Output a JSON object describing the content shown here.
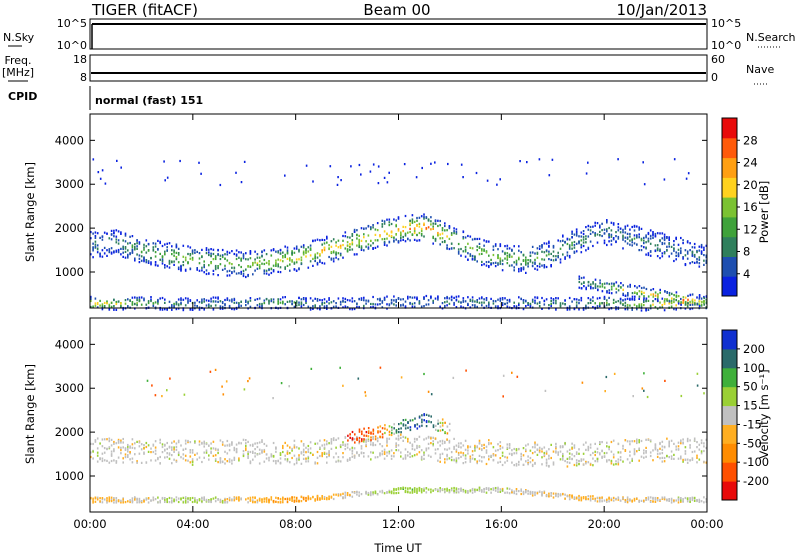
{
  "header": {
    "radar_label": "TIGER (fitACF)",
    "beam_label": "Beam 00",
    "date_label": "10/Jan/2013"
  },
  "strip_panels": {
    "nsky": {
      "label": "N.Sky",
      "ticks": [
        "10^5",
        "10^0"
      ]
    },
    "nsearch": {
      "label": "N.Search",
      "ticks": [
        "10^5",
        "10^0"
      ]
    },
    "freq": {
      "label_line1": "Freq.",
      "label_line2": "[MHz]",
      "ticks": [
        "18",
        "8"
      ],
      "value_mhz": 10
    },
    "nave": {
      "label": "Nave",
      "ticks": [
        "60",
        "0"
      ]
    },
    "cpid": {
      "label": "CPID",
      "value": "normal (fast) 151"
    }
  },
  "chart_data": [
    {
      "type": "heatmap",
      "quantity": "Power",
      "xlabel": "",
      "ylabel": "Slant Range [km]",
      "xlim": [
        "00:00",
        "24:00"
      ],
      "ylim": [
        180,
        4600
      ],
      "x_tick_labels": [],
      "y_tick_labels": [
        "1000",
        "2000",
        "3000",
        "4000"
      ],
      "y_ticks": [
        1000,
        2000,
        3000,
        4000
      ],
      "colorbar": {
        "label": "Power [dB]",
        "range": [
          0,
          32
        ],
        "tick_labels": [
          "4",
          "8",
          "12",
          "16",
          "20",
          "24",
          "28"
        ],
        "colors": [
          "#0a22e0",
          "#1e4fb0",
          "#2f7f5c",
          "#3fa23a",
          "#7bc232",
          "#ffd21f",
          "#ff9f12",
          "#ff5a0a",
          "#e80a0a"
        ]
      },
      "series": [
        {
          "description": "near-range band",
          "t": [
            0,
            1,
            2,
            3,
            5,
            7,
            9,
            11,
            13,
            15,
            17,
            19,
            20,
            21,
            22,
            23,
            24
          ],
          "range_km": [
            320,
            300,
            330,
            290,
            310,
            330,
            300,
            320,
            340,
            330,
            310,
            300,
            320,
            280,
            290,
            300,
            320
          ],
          "power_db": [
            22,
            18,
            14,
            10,
            8,
            12,
            8,
            8,
            8,
            8,
            8,
            10,
            12,
            14,
            20,
            24,
            18
          ]
        },
        {
          "description": "main F-region band",
          "t": [
            0,
            1,
            2,
            3,
            4,
            5,
            6,
            7,
            8,
            9,
            10,
            11,
            12,
            13,
            14,
            15,
            16,
            17,
            18,
            19,
            20,
            21,
            22,
            23,
            24
          ],
          "range_km": [
            1650,
            1700,
            1500,
            1400,
            1300,
            1250,
            1200,
            1250,
            1350,
            1500,
            1650,
            1850,
            2000,
            2050,
            1800,
            1500,
            1350,
            1300,
            1450,
            1750,
            1950,
            1800,
            1650,
            1500,
            1350
          ],
          "power_db": [
            8,
            10,
            12,
            14,
            16,
            16,
            16,
            18,
            20,
            20,
            20,
            22,
            24,
            26,
            18,
            16,
            16,
            14,
            12,
            10,
            8,
            8,
            10,
            8,
            6
          ]
        },
        {
          "description": "late far-range arc",
          "t": [
            19,
            20,
            21,
            22,
            23,
            24
          ],
          "range_km": [
            800,
            700,
            600,
            500,
            400,
            350
          ],
          "power_db": [
            10,
            14,
            18,
            22,
            26,
            14
          ]
        }
      ]
    },
    {
      "type": "heatmap",
      "quantity": "Velocity",
      "xlabel": "Time UT",
      "ylabel": "Slant Range [km]",
      "xlim": [
        "00:00",
        "24:00"
      ],
      "ylim": [
        180,
        4600
      ],
      "x_tick_labels": [
        "00:00",
        "04:00",
        "08:00",
        "12:00",
        "16:00",
        "20:00",
        "00:00"
      ],
      "y_tick_labels": [
        "1000",
        "2000",
        "3000",
        "4000"
      ],
      "y_ticks": [
        1000,
        2000,
        3000,
        4000
      ],
      "colorbar": {
        "label": "Velocity [m s⁻¹]",
        "tick_labels": [
          "200",
          "100",
          "50",
          "15",
          "-15",
          "-50",
          "-100",
          "-200"
        ],
        "bins": [
          -250,
          -200,
          -100,
          -50,
          -15,
          15,
          50,
          100,
          200,
          250
        ],
        "colors": [
          "#e80a0a",
          "#ff5000",
          "#ff8c00",
          "#ffae21",
          "#c0c0c0",
          "#9ad035",
          "#3fb03a",
          "#2a6a6a",
          "#1030d0"
        ]
      },
      "series": [
        {
          "description": "ground-scatter band",
          "t": [
            0,
            2,
            4,
            6,
            8,
            10,
            12,
            14,
            16,
            18,
            20,
            22,
            24
          ],
          "range_km": [
            1600,
            1600,
            1550,
            1600,
            1550,
            1650,
            1700,
            1600,
            1550,
            1500,
            1550,
            1600,
            1600
          ],
          "velocity_ms": [
            0,
            0,
            0,
            0,
            0,
            0,
            0,
            0,
            0,
            0,
            0,
            0,
            0
          ]
        },
        {
          "description": "ionospheric patch",
          "t": [
            10,
            11,
            12,
            13,
            14
          ],
          "range_km": [
            1900,
            2000,
            2150,
            2300,
            2100
          ],
          "velocity_ms": [
            -220,
            -150,
            120,
            200,
            -80
          ]
        },
        {
          "description": "low-range lines",
          "t": [
            0,
            4,
            8,
            12,
            16,
            20,
            24
          ],
          "range_km": [
            480,
            480,
            480,
            700,
            700,
            480,
            480
          ],
          "velocity_ms": [
            -30,
            20,
            -60,
            40,
            0,
            -20,
            10
          ]
        }
      ]
    }
  ]
}
